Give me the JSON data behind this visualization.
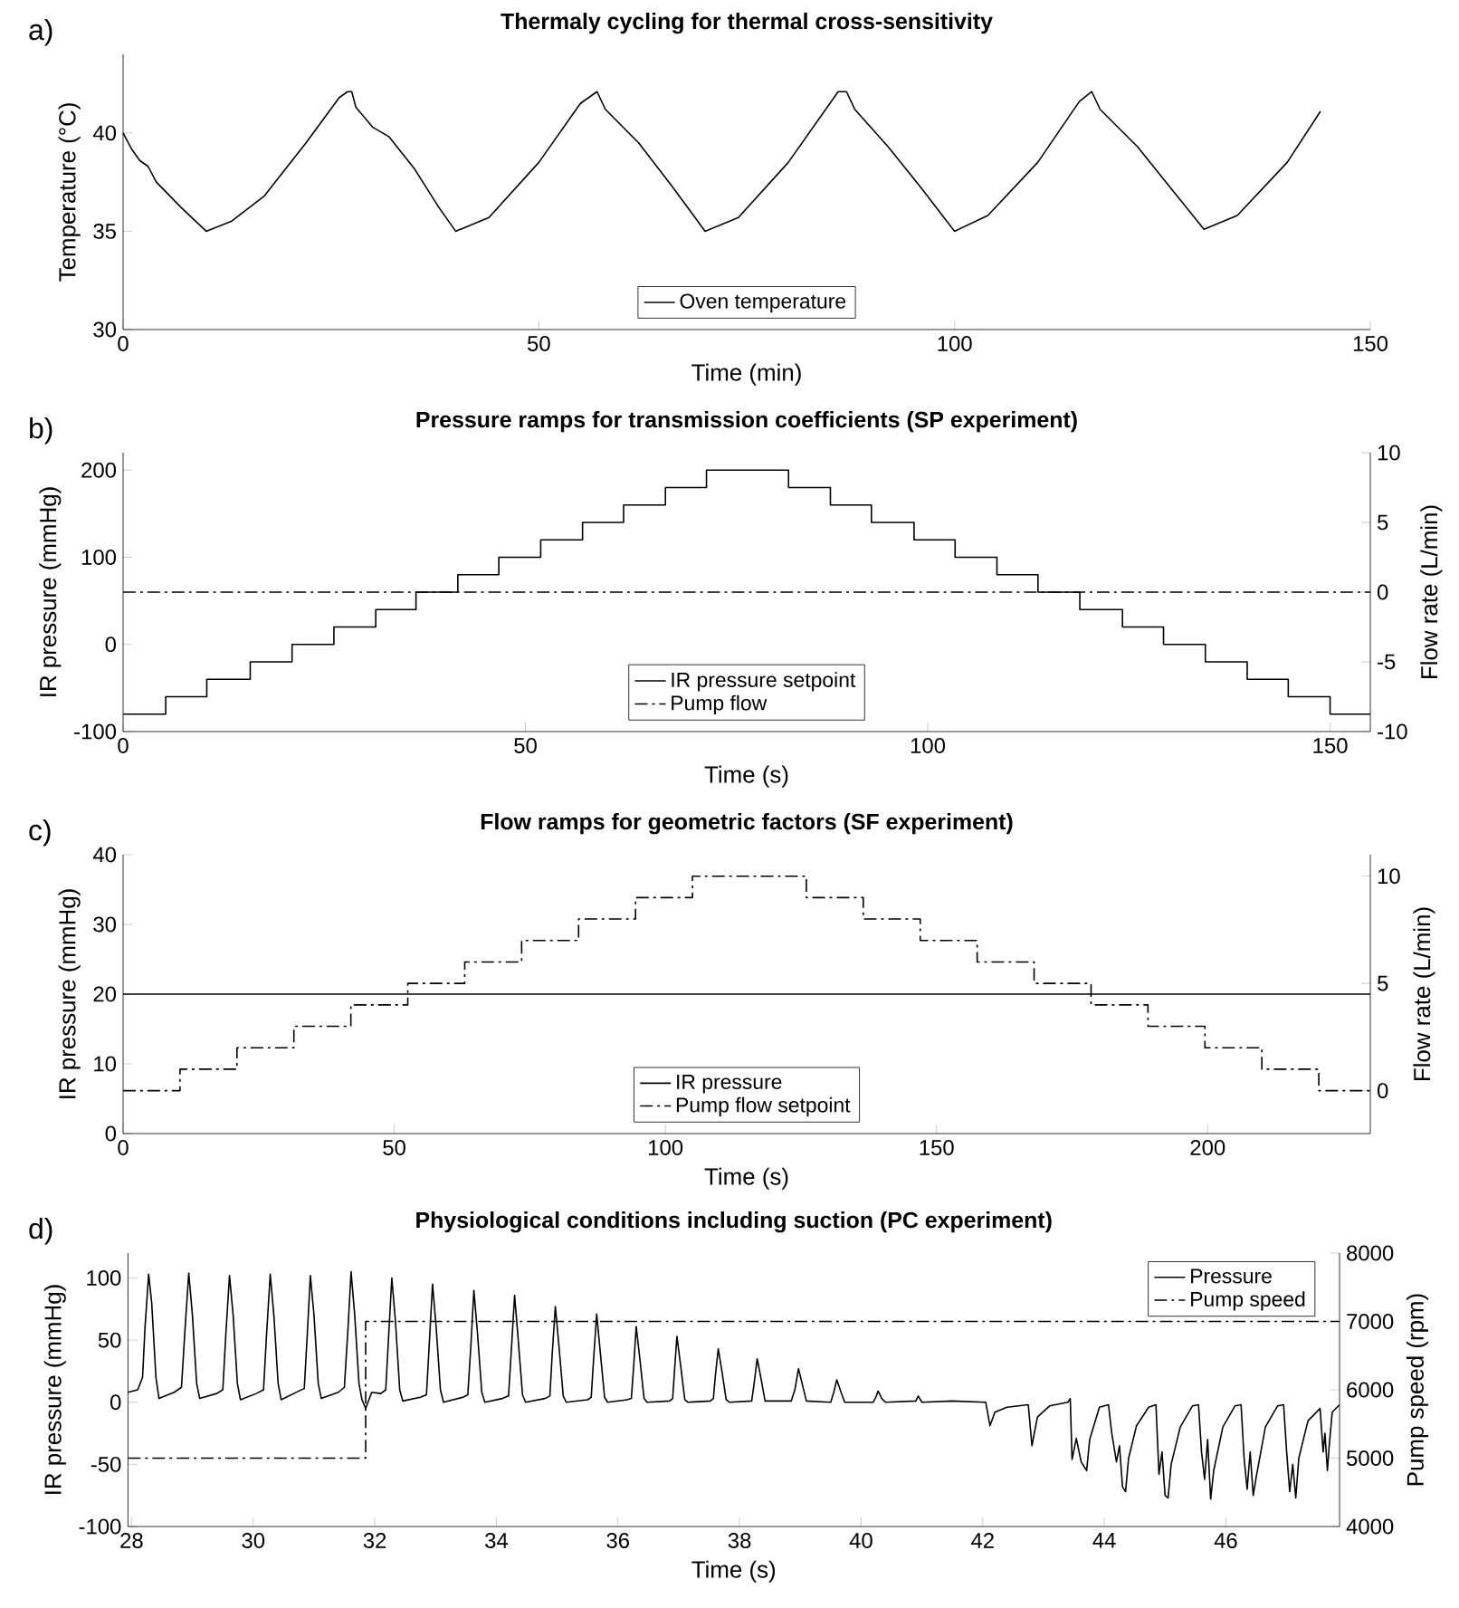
{
  "chart_data": [
    {
      "type": "line",
      "title": "Thermaly cycling for thermal cross-sensitivity",
      "xlabel": "Time (min)",
      "ylabel": "Temperature (°C)",
      "annotations": [
        "a)"
      ],
      "xlim": [
        0,
        150
      ],
      "ylim": [
        30,
        44
      ],
      "xticks": [
        0,
        50,
        100,
        150
      ],
      "yticks": [
        30,
        35,
        40
      ],
      "legend": "bottom",
      "marker": "none",
      "series": [
        {
          "name": "Oven temperature",
          "color": "#000000",
          "line_style": "solid",
          "x": [
            0,
            1,
            2,
            3,
            4,
            7,
            10,
            13,
            17,
            22,
            26,
            27,
            27.5,
            28,
            30,
            32,
            35,
            38,
            40,
            44,
            50,
            55,
            57,
            58,
            62,
            66,
            70,
            74,
            80,
            86,
            87,
            88,
            92,
            96,
            100,
            104,
            110,
            115,
            116.5,
            117.5,
            122,
            126,
            130,
            134,
            140,
            144
          ],
          "values": [
            40,
            39.2,
            38.6,
            38.3,
            37.5,
            36.2,
            35,
            35.5,
            36.8,
            39.5,
            41.8,
            42.1,
            42.1,
            41.3,
            40.3,
            39.8,
            38.2,
            36.2,
            35,
            35.7,
            38.5,
            41.5,
            42.1,
            41.2,
            39.5,
            37.3,
            35,
            35.7,
            38.5,
            42.1,
            42.1,
            41.2,
            39.3,
            37.2,
            35,
            35.8,
            38.5,
            41.6,
            42.1,
            41.2,
            39.3,
            37.2,
            35.1,
            35.8,
            38.5,
            41.1
          ]
        }
      ]
    },
    {
      "type": "step",
      "title": "Pressure ramps for transmission coefficients (SP experiment)",
      "xlabel": "Time (s)",
      "ylabel": "IR pressure (mmHg)",
      "y2label": "Flow rate (L/min)",
      "annotations": [
        "b)"
      ],
      "xlim": [
        0,
        155
      ],
      "ylim": [
        -100,
        220
      ],
      "y2lim": [
        -10,
        10
      ],
      "xticks": [
        0,
        50,
        100,
        150
      ],
      "yticks": [
        -100,
        0,
        100,
        200
      ],
      "y2ticks": [
        -10,
        -5,
        0,
        5,
        10
      ],
      "legend": "bottom",
      "marker": "none",
      "series": [
        {
          "name": "IR pressure setpoint",
          "color": "#000000",
          "line_style": "solid",
          "axis": "y",
          "x": [
            0,
            5.3,
            10.4,
            15.8,
            21,
            26.2,
            31.4,
            36.4,
            41.6,
            46.7,
            51.9,
            57.1,
            62.2,
            67.4,
            72.5,
            82.7,
            87.9,
            93,
            98.3,
            103.4,
            108.6,
            113.7,
            118.9,
            124.2,
            129.3,
            134.5,
            139.7,
            144.8,
            150,
            155
          ],
          "values": [
            -80,
            -60,
            -40,
            -20,
            0,
            20,
            40,
            60,
            80,
            100,
            120,
            140,
            160,
            180,
            200,
            180,
            160,
            140,
            120,
            100,
            80,
            60,
            40,
            20,
            0,
            -20,
            -40,
            -60,
            -80,
            -80
          ]
        },
        {
          "name": "Pump flow",
          "color": "#000000",
          "type": "line",
          "line_style": "dashdot",
          "axis": "y2",
          "x": [
            0,
            155
          ],
          "values": [
            0,
            0
          ]
        }
      ]
    },
    {
      "type": "step",
      "title": "Flow ramps for geometric factors (SF experiment)",
      "xlabel": "Time (s)",
      "ylabel": "IR pressure (mmHg)",
      "y2label": "Flow rate (L/min)",
      "annotations": [
        "c)"
      ],
      "xlim": [
        0,
        230
      ],
      "ylim": [
        0,
        40
      ],
      "y2lim": [
        -2,
        11
      ],
      "xticks": [
        0,
        50,
        100,
        150,
        200
      ],
      "yticks": [
        0,
        10,
        20,
        30,
        40
      ],
      "y2ticks": [
        0,
        5,
        10
      ],
      "legend": "bottom",
      "marker": "none",
      "series": [
        {
          "name": "IR pressure",
          "color": "#000000",
          "type": "line",
          "line_style": "solid",
          "axis": "y",
          "x": [
            0,
            230
          ],
          "values": [
            20,
            20
          ]
        },
        {
          "name": "Pump flow setpoint",
          "color": "#000000",
          "line_style": "dashdot",
          "axis": "y2",
          "x": [
            0,
            10.5,
            21,
            31.5,
            42,
            52.5,
            63,
            73.5,
            84,
            94.5,
            105,
            126,
            136.5,
            147,
            157.5,
            168,
            178.5,
            189,
            199.5,
            210,
            220.5,
            230
          ],
          "values": [
            0,
            1,
            2,
            3,
            4,
            5,
            6,
            7,
            8,
            9,
            10,
            9,
            8,
            7,
            6,
            5,
            4,
            3,
            2,
            1,
            0,
            0
          ]
        }
      ]
    },
    {
      "type": "line",
      "title": "Physiological conditions including suction (PC experiment)",
      "xlabel": "Time (s)",
      "ylabel": "IR pressure (mmHg)",
      "y2label": "Pump speed (rpm)",
      "annotations": [
        "d)"
      ],
      "xlim": [
        27.94,
        47.87
      ],
      "ylim": [
        -100,
        120
      ],
      "y2lim": [
        4000,
        8000
      ],
      "xticks": [
        28,
        30,
        32,
        34,
        36,
        38,
        40,
        42,
        44,
        46
      ],
      "yticks": [
        -100,
        -50,
        0,
        50,
        100
      ],
      "y2ticks": [
        4000,
        5000,
        6000,
        7000,
        8000
      ],
      "legend": "top right",
      "marker": "none",
      "series": [
        {
          "name": "Pressure",
          "color": "#000000",
          "line_style": "solid",
          "axis": "y",
          "x": [
            27.94,
            28.1,
            28.18,
            28.22,
            28.28,
            28.33,
            28.4,
            28.45,
            28.7,
            28.82,
            28.88,
            28.94,
            29.0,
            29.07,
            29.12,
            29.4,
            29.5,
            29.55,
            29.61,
            29.67,
            29.74,
            29.79,
            30.05,
            30.17,
            30.22,
            30.28,
            30.34,
            30.41,
            30.46,
            30.75,
            30.84,
            30.89,
            30.94,
            31.0,
            31.07,
            31.12,
            31.4,
            31.5,
            31.56,
            31.61,
            31.67,
            31.74,
            31.79,
            31.85,
            31.95,
            32.1,
            32.18,
            32.23,
            32.28,
            32.34,
            32.41,
            32.46,
            32.75,
            32.85,
            32.9,
            32.95,
            33.01,
            33.08,
            33.13,
            33.45,
            33.53,
            33.58,
            33.63,
            33.69,
            33.76,
            33.81,
            34.1,
            34.2,
            34.25,
            34.3,
            34.36,
            34.43,
            34.48,
            34.8,
            34.88,
            34.92,
            34.97,
            35.03,
            35.1,
            35.15,
            35.5,
            35.56,
            35.6,
            35.65,
            35.71,
            35.78,
            35.83,
            36.15,
            36.22,
            36.26,
            36.3,
            36.36,
            36.43,
            36.48,
            36.85,
            36.9,
            36.93,
            36.97,
            37.03,
            37.1,
            37.15,
            37.52,
            37.57,
            37.6,
            37.65,
            37.71,
            37.78,
            37.83,
            38.2,
            38.24,
            38.29,
            38.35,
            38.42,
            38.85,
            38.91,
            38.97,
            39.03,
            39.1,
            39.5,
            39.55,
            39.6,
            39.67,
            39.73,
            40.2,
            40.25,
            40.28,
            40.34,
            40.4,
            40.9,
            40.94,
            41.0,
            41.5,
            42.05,
            42.12,
            42.2,
            42.4,
            42.75,
            42.81,
            42.9,
            43.1,
            43.4,
            43.44,
            43.47,
            43.54,
            43.62,
            43.71,
            43.76,
            43.92,
            44.07,
            44.12,
            44.2,
            44.25,
            44.3,
            44.35,
            44.4,
            44.53,
            44.73,
            44.85,
            44.9,
            44.95,
            45.0,
            45.05,
            45.1,
            45.25,
            45.45,
            45.55,
            45.6,
            45.65,
            45.7,
            45.75,
            45.8,
            45.95,
            46.15,
            46.25,
            46.3,
            46.35,
            46.4,
            46.45,
            46.5,
            46.65,
            46.85,
            46.95,
            47.0,
            47.05,
            47.1,
            47.15,
            47.2,
            47.35,
            47.55,
            47.6,
            47.63,
            47.67,
            47.7,
            47.75,
            47.87
          ],
          "values": [
            8,
            10,
            20,
            60,
            103,
            80,
            20,
            3,
            8,
            12,
            60,
            104,
            70,
            15,
            3,
            7,
            10,
            55,
            102,
            70,
            15,
            2,
            7,
            10,
            55,
            103,
            70,
            15,
            2,
            9,
            11,
            55,
            102,
            70,
            15,
            3,
            8,
            12,
            60,
            105,
            70,
            15,
            2,
            -5,
            8,
            7,
            10,
            55,
            100,
            65,
            10,
            1,
            4,
            6,
            50,
            95,
            60,
            10,
            0,
            4,
            6,
            45,
            90,
            55,
            8,
            0,
            3,
            5,
            45,
            86,
            50,
            6,
            0,
            3,
            5,
            40,
            77,
            45,
            5,
            0,
            2,
            4,
            35,
            71,
            40,
            4,
            0,
            2,
            3,
            30,
            61,
            35,
            3,
            0,
            1,
            3,
            25,
            53,
            30,
            2,
            0,
            1,
            3,
            20,
            43,
            25,
            2,
            0,
            1,
            15,
            35,
            20,
            1,
            1,
            10,
            27,
            15,
            1,
            0,
            8,
            18,
            8,
            0,
            0,
            5,
            9,
            3,
            0,
            1,
            5,
            0,
            1,
            0,
            -19,
            -8,
            -4,
            -2,
            -35,
            -12,
            -3,
            0,
            3,
            -46,
            -29,
            -48,
            -55,
            -30,
            -4,
            -2,
            -24,
            -48,
            -35,
            -68,
            -72,
            -45,
            -19,
            -4,
            -2,
            -58,
            -40,
            -75,
            -77,
            -50,
            -20,
            -3,
            -2,
            -40,
            -62,
            -30,
            -78,
            -55,
            -20,
            -3,
            -2,
            -45,
            -70,
            -40,
            -75,
            -60,
            -20,
            -3,
            -2,
            -40,
            -72,
            -50,
            -77,
            -45,
            -15,
            -5,
            -40,
            -25,
            -55,
            -35,
            -8,
            -2
          ]
        },
        {
          "name": "Pump speed",
          "color": "#000000",
          "type": "step",
          "line_style": "dashdot",
          "axis": "y2",
          "x": [
            27.94,
            31.85,
            47.87
          ],
          "values": [
            5000,
            7000,
            7000
          ]
        }
      ]
    }
  ]
}
